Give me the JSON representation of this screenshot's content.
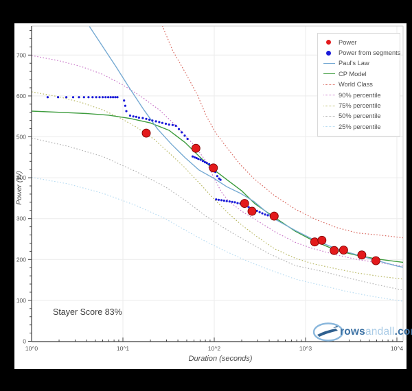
{
  "colors": {
    "background": "#000000",
    "plot_background": "#ffffff",
    "grid": "#ebebeb",
    "axis": "#3c3c3c",
    "tick_label": "#555555",
    "power_red": "#e31a1c",
    "power_red_edge": "#7f0000",
    "segment_blue": "#1a1ad9",
    "pauls_law_blue": "#76aad3",
    "cp_model_green": "#3d9c3d",
    "world_class_red": "#d9685f",
    "p90_magenta": "#c977c9",
    "p75_olive": "#b9b964",
    "p50_gray": "#b3b3b3",
    "p25_lightblue": "#b8dcf2"
  },
  "chart_data": {
    "type": "scatter",
    "title": "",
    "xlabel": "Duration (seconds)",
    "ylabel": "Power (W)",
    "x_scale": "log10",
    "x_ticks": [
      "10^0",
      "10^1",
      "10^2",
      "10^3",
      "10^4"
    ],
    "x_tick_exponents": [
      0,
      1,
      2,
      3,
      4
    ],
    "y_ticks": [
      0,
      100,
      200,
      300,
      400,
      500,
      600,
      700
    ],
    "xlim_log": [
      0,
      4.07
    ],
    "ylim": [
      0,
      772
    ],
    "annotation": "Stayer Score 83%",
    "curves": [
      {
        "name": "25% percentile",
        "key": "p25",
        "style": "dotted",
        "color_key": "p25_lightblue",
        "points": [
          [
            1,
            401
          ],
          [
            2.5,
            385
          ],
          [
            6,
            362
          ],
          [
            14,
            332
          ],
          [
            29,
            300
          ],
          [
            48,
            272
          ],
          [
            81,
            244
          ],
          [
            137,
            219
          ],
          [
            230,
            196
          ],
          [
            400,
            175
          ],
          [
            772,
            152
          ],
          [
            1540,
            136
          ],
          [
            2680,
            123
          ],
          [
            4700,
            112
          ],
          [
            8200,
            103
          ],
          [
            11750,
            98
          ]
        ]
      },
      {
        "name": "50% percentile",
        "key": "p50",
        "style": "dotted",
        "color_key": "p50_gray",
        "points": [
          [
            1,
            497
          ],
          [
            2.5,
            477
          ],
          [
            6,
            452
          ],
          [
            14,
            415
          ],
          [
            29,
            378
          ],
          [
            48,
            345
          ],
          [
            81,
            306
          ],
          [
            137,
            273
          ],
          [
            230,
            244
          ],
          [
            400,
            214
          ],
          [
            772,
            185
          ],
          [
            1540,
            171
          ],
          [
            2680,
            157
          ],
          [
            4700,
            144
          ],
          [
            8200,
            132
          ],
          [
            11750,
            125
          ]
        ]
      },
      {
        "name": "75% percentile",
        "key": "p75",
        "style": "dotted",
        "color_key": "p75_olive",
        "points": [
          [
            1,
            610
          ],
          [
            2,
            598
          ],
          [
            3.5,
            584
          ],
          [
            6,
            566
          ],
          [
            9,
            548
          ],
          [
            14,
            524
          ],
          [
            22,
            494
          ],
          [
            33,
            458
          ],
          [
            48,
            424
          ],
          [
            70,
            385
          ],
          [
            100,
            347
          ],
          [
            140,
            315
          ],
          [
            193,
            287
          ],
          [
            280,
            259
          ],
          [
            460,
            226
          ],
          [
            772,
            203
          ],
          [
            1188,
            190
          ],
          [
            2190,
            177
          ],
          [
            3680,
            167
          ],
          [
            6900,
            158
          ],
          [
            11750,
            152
          ]
        ]
      },
      {
        "name": "90% percentile",
        "key": "p90",
        "style": "dotted",
        "color_key": "p90_magenta",
        "points": [
          [
            1,
            699
          ],
          [
            2,
            686
          ],
          [
            3.5,
            672
          ],
          [
            6,
            653
          ],
          [
            10,
            627
          ],
          [
            16,
            598
          ],
          [
            25,
            566
          ],
          [
            40,
            523
          ],
          [
            60,
            480
          ],
          [
            81,
            441
          ],
          [
            100,
            398
          ],
          [
            120,
            365
          ],
          [
            140,
            346
          ],
          [
            170,
            330
          ],
          [
            210,
            315
          ],
          [
            300,
            294
          ],
          [
            460,
            268
          ],
          [
            772,
            242
          ],
          [
            1188,
            227
          ],
          [
            2190,
            211
          ],
          [
            3680,
            200
          ],
          [
            6900,
            191
          ],
          [
            11750,
            184
          ]
        ]
      },
      {
        "name": "World Class",
        "key": "world_class",
        "style": "dotted",
        "color_key": "world_class_red",
        "points": [
          [
            27,
            772
          ],
          [
            35,
            711
          ],
          [
            48,
            658
          ],
          [
            66,
            601
          ],
          [
            81,
            553
          ],
          [
            103,
            511
          ],
          [
            137,
            474
          ],
          [
            193,
            432
          ],
          [
            272,
            398
          ],
          [
            458,
            356
          ],
          [
            772,
            323
          ],
          [
            1290,
            298
          ],
          [
            2190,
            278
          ],
          [
            3680,
            265
          ],
          [
            6900,
            259
          ],
          [
            11750,
            253
          ]
        ]
      },
      {
        "name": "CP Model",
        "key": "cp_model",
        "style": "solid",
        "color_key": "cp_model_green",
        "points": [
          [
            1,
            563
          ],
          [
            2,
            560
          ],
          [
            4,
            557
          ],
          [
            7,
            553
          ],
          [
            12,
            545
          ],
          [
            20,
            534
          ],
          [
            32,
            516
          ],
          [
            48,
            486
          ],
          [
            70,
            450
          ],
          [
            100,
            419
          ],
          [
            140,
            394
          ],
          [
            200,
            368
          ],
          [
            280,
            336
          ],
          [
            458,
            303
          ],
          [
            772,
            269
          ],
          [
            1188,
            247
          ],
          [
            2190,
            222
          ],
          [
            3680,
            210
          ],
          [
            6150,
            201
          ],
          [
            10000,
            195
          ],
          [
            11750,
            193
          ]
        ]
      },
      {
        "name": "Paul's Law",
        "key": "pauls_law",
        "style": "solid",
        "color_key": "pauls_law_blue",
        "points": [
          [
            4.3,
            770
          ],
          [
            6,
            721
          ],
          [
            8.5,
            670
          ],
          [
            12,
            617
          ],
          [
            17,
            566
          ],
          [
            24,
            519
          ],
          [
            34,
            482
          ],
          [
            48,
            449
          ],
          [
            68,
            419
          ],
          [
            100,
            398
          ],
          [
            137,
            378
          ],
          [
            193,
            362
          ],
          [
            272,
            342
          ],
          [
            458,
            299
          ],
          [
            772,
            271
          ],
          [
            1188,
            250
          ],
          [
            2190,
            226
          ],
          [
            3680,
            211
          ],
          [
            6150,
            197
          ],
          [
            10000,
            184
          ],
          [
            11750,
            181
          ]
        ]
      }
    ],
    "point_series": [
      {
        "name": "Power from segments",
        "key": "segments",
        "color_key": "segment_blue",
        "radius": 1.6,
        "points": [
          [
            1.5,
            597
          ],
          [
            1.95,
            597
          ],
          [
            2.4,
            597
          ],
          [
            2.85,
            597
          ],
          [
            3.3,
            597
          ],
          [
            3.75,
            597
          ],
          [
            4.2,
            597
          ],
          [
            4.65,
            597
          ],
          [
            5.1,
            597
          ],
          [
            5.55,
            597
          ],
          [
            6,
            597
          ],
          [
            6.45,
            597
          ],
          [
            6.9,
            597
          ],
          [
            7.35,
            597
          ],
          [
            7.8,
            597
          ],
          [
            8.25,
            597
          ],
          [
            8.7,
            597
          ],
          [
            10.3,
            589
          ],
          [
            10.6,
            576
          ],
          [
            10.9,
            563
          ],
          [
            12,
            552
          ],
          [
            13,
            550
          ],
          [
            14,
            549
          ],
          [
            15,
            547
          ],
          [
            16.5,
            546
          ],
          [
            18,
            544
          ],
          [
            19.5,
            542
          ],
          [
            21,
            540
          ],
          [
            23,
            538
          ],
          [
            25,
            536
          ],
          [
            27,
            534
          ],
          [
            29.5,
            532
          ],
          [
            32,
            530
          ],
          [
            35,
            529
          ],
          [
            38,
            527
          ],
          [
            41,
            519
          ],
          [
            44,
            511
          ],
          [
            47.5,
            503
          ],
          [
            51,
            495
          ],
          [
            58,
            452
          ],
          [
            61,
            450
          ],
          [
            64,
            448
          ],
          [
            67,
            446
          ],
          [
            71,
            444
          ],
          [
            75,
            441
          ],
          [
            79,
            438
          ],
          [
            83,
            436
          ],
          [
            88,
            433
          ],
          [
            93,
            430
          ],
          [
            103,
            414
          ],
          [
            108,
            404
          ],
          [
            113,
            398
          ],
          [
            117,
            395
          ],
          [
            105,
            347
          ],
          [
            112,
            346
          ],
          [
            120,
            345
          ],
          [
            128,
            344
          ],
          [
            137,
            343
          ],
          [
            147,
            342
          ],
          [
            157,
            341
          ],
          [
            168,
            340
          ],
          [
            180,
            338
          ],
          [
            193,
            337
          ],
          [
            207,
            334
          ],
          [
            222,
            331
          ],
          [
            238,
            328
          ],
          [
            255,
            325
          ],
          [
            273,
            322
          ],
          [
            293,
            319
          ],
          [
            314,
            316
          ],
          [
            336,
            313
          ],
          [
            360,
            310
          ],
          [
            386,
            308
          ],
          [
            414,
            307
          ],
          [
            443,
            306
          ]
        ]
      },
      {
        "name": "Power",
        "key": "power",
        "color_key": "power_red",
        "radius": 6,
        "points": [
          [
            18,
            509
          ],
          [
            63,
            472
          ],
          [
            98,
            424
          ],
          [
            215,
            337
          ],
          [
            259,
            318
          ],
          [
            453,
            306
          ],
          [
            1260,
            243
          ],
          [
            1510,
            247
          ],
          [
            2060,
            222
          ],
          [
            2610,
            223
          ],
          [
            4130,
            211
          ],
          [
            5890,
            197
          ]
        ]
      }
    ]
  },
  "legend": {
    "items": [
      {
        "label": "Power",
        "swatch": "dot",
        "color_key": "power_red"
      },
      {
        "label": "Power from segments",
        "swatch": "dot",
        "color_key": "segment_blue"
      },
      {
        "label": "Paul's Law",
        "swatch": "line",
        "color_key": "pauls_law_blue"
      },
      {
        "label": "CP Model",
        "swatch": "line",
        "color_key": "cp_model_green"
      },
      {
        "label": "World Class",
        "swatch": "dotted",
        "color_key": "world_class_red"
      },
      {
        "label": "90% percentile",
        "swatch": "dotted",
        "color_key": "p90_magenta"
      },
      {
        "label": "75% percentile",
        "swatch": "dotted",
        "color_key": "p75_olive"
      },
      {
        "label": "50% percentile",
        "swatch": "dotted",
        "color_key": "p50_gray"
      },
      {
        "label": "25% percentile",
        "swatch": "dotted",
        "color_key": "p25_lightblue"
      }
    ]
  },
  "logo": {
    "part1": "rows",
    "part2": "andall",
    "part3": ".com"
  }
}
